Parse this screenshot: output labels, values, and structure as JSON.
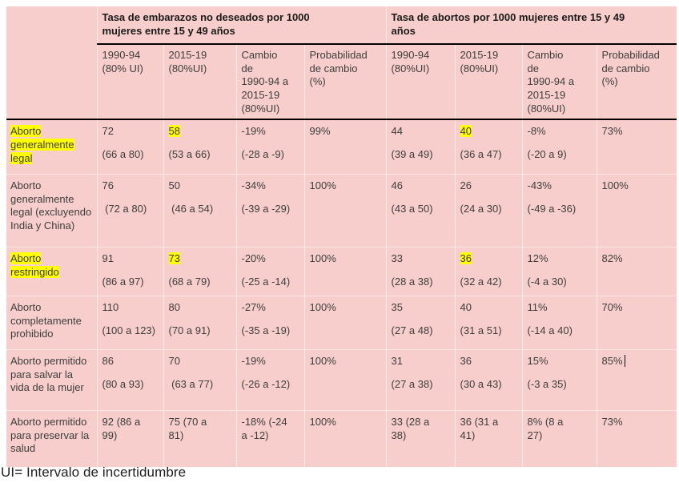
{
  "colors": {
    "table_bg": "#f8cecc",
    "highlight": "#ffff00",
    "rule": "#000000",
    "text": "#3d3d3d",
    "header_text": "#1a1a1a"
  },
  "table": {
    "group_headers": [
      {
        "label": "Tasa de embarazos no deseados por 1000\nmujeres entre 15 y 49 años"
      },
      {
        "label": "Tasa de abortos por 1000 mujeres entre 15 y 49\naños"
      }
    ],
    "sub_headers": [
      "1990-94\n(80% UI)",
      "2015-19\n(80%UI)",
      "Cambio\nde\n1990-94 a\n2015-19\n(80%UI)",
      "Probabilidad\nde cambio\n(%)",
      "1990-94\n(80%UI)",
      "2015-19\n(80%UI)",
      "Cambio\nde\n1990-94 a\n2015-19\n(80%UI)",
      "Probabilidad\nde cambio\n(%)"
    ],
    "rows": [
      {
        "label": "Aborto generalmente legal",
        "label_highlighted": true,
        "cells": [
          {
            "value": "72",
            "range": "(66 a 80)"
          },
          {
            "value": "58",
            "range": "(53 a 66)",
            "highlighted": true
          },
          {
            "value": "-19%",
            "range": "(-28 a -9)"
          },
          {
            "value": "99%"
          },
          {
            "value": "44",
            "range": "(39 a 49)"
          },
          {
            "value": "40",
            "range": "(36 a 47)",
            "highlighted": true
          },
          {
            "value": "-8%",
            "range": "(-20 a 9)"
          },
          {
            "value": "73%"
          }
        ]
      },
      {
        "label": "Aborto generalmente legal (excluyendo India y China)",
        "label_highlighted": false,
        "cells": [
          {
            "value": "76",
            "range": " (72 a 80)"
          },
          {
            "value": "50",
            "range": " (46 a 54)"
          },
          {
            "value": "-34%",
            "range": "(-39 a -29)"
          },
          {
            "value": "100%"
          },
          {
            "value": "46",
            "range": "(43 a 50)"
          },
          {
            "value": "26",
            "range": "(24 a 30)"
          },
          {
            "value": "-43%",
            "range": "(-49 a -36)"
          },
          {
            "value": "100%"
          }
        ]
      },
      {
        "label": "Aborto restringido",
        "label_highlighted": true,
        "cells": [
          {
            "value": "91",
            "range": "(86 a 97)"
          },
          {
            "value": "73",
            "range": "(68 a 79)",
            "highlighted": true
          },
          {
            "value": "-20%",
            "range": "(-25 a -14)"
          },
          {
            "value": "100%"
          },
          {
            "value": "33",
            "range": "(28 a 38)"
          },
          {
            "value": "36",
            "range": "(32 a 42)",
            "highlighted": true
          },
          {
            "value": "12%",
            "range": "(-4 a 30)"
          },
          {
            "value": "82%"
          }
        ]
      },
      {
        "label": "Aborto completamente prohibido",
        "label_highlighted": false,
        "cells": [
          {
            "value": "110",
            "range": "(100 a 123)"
          },
          {
            "value": "80",
            "range": "(70 a 91)"
          },
          {
            "value": "-27%",
            "range": "(-35 a -19)"
          },
          {
            "value": "100%"
          },
          {
            "value": "35",
            "range": "(27 a 48)"
          },
          {
            "value": "40",
            "range": "(31 a 51)"
          },
          {
            "value": "11%",
            "range": "(-14 a 40)"
          },
          {
            "value": "70%"
          }
        ]
      },
      {
        "label": "Aborto permitido para salvar la vida de la mujer",
        "label_highlighted": false,
        "cells": [
          {
            "value": "86",
            "range": "(80 a 93)"
          },
          {
            "value": "70",
            "range": " (63 a 77)"
          },
          {
            "value": "-19%",
            "range": "(-26 a -12)"
          },
          {
            "value": "100%"
          },
          {
            "value": "31",
            "range": "(27 a 38)"
          },
          {
            "value": "36",
            "range": "(30 a 43)"
          },
          {
            "value": "15%",
            "range": "(-3 a 35)"
          },
          {
            "value": "85%",
            "caret": true
          }
        ]
      },
      {
        "label": "Aborto permitido para preservar la salud",
        "label_highlighted": false,
        "cells": [
          {
            "text": "92 (86 a\n99)"
          },
          {
            "text": "75 (70 a\n81)"
          },
          {
            "text": "-18% (-24\na -12)"
          },
          {
            "text": "100%"
          },
          {
            "text": "33 (28 a\n38)"
          },
          {
            "text": "36 (31 a\n41)"
          },
          {
            "text": "8% (8 a\n27)"
          },
          {
            "text": "73%"
          }
        ]
      }
    ]
  },
  "footnote": "UI= Intervalo de incertidumbre"
}
